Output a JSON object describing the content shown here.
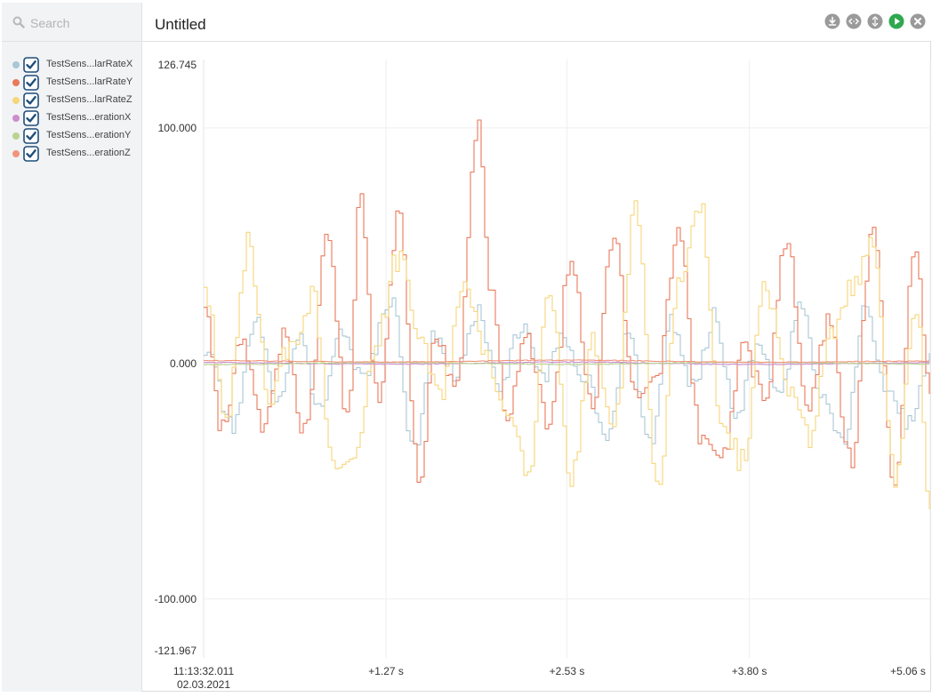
{
  "sidebar": {
    "search_placeholder": "Search",
    "items": [
      {
        "label": "TestSens...larRateX",
        "color": "#a9c7d6",
        "checked": true
      },
      {
        "label": "TestSens...larRateY",
        "color": "#e9795a",
        "checked": true
      },
      {
        "label": "TestSens...larRateZ",
        "color": "#f5d67a",
        "checked": true
      },
      {
        "label": "TestSens...erationX",
        "color": "#cc8dcc",
        "checked": true
      },
      {
        "label": "TestSens...erationY",
        "color": "#b9d393",
        "checked": true
      },
      {
        "label": "TestSens...erationZ",
        "color": "#f0957a",
        "checked": true
      }
    ]
  },
  "header": {
    "title": "Untitled",
    "toolbar": [
      {
        "name": "download-icon",
        "color": "#9a9a9a"
      },
      {
        "name": "expand-horizontal-icon",
        "color": "#9a9a9a"
      },
      {
        "name": "expand-vertical-icon",
        "color": "#9a9a9a"
      },
      {
        "name": "play-icon",
        "color": "#2fa84f"
      },
      {
        "name": "close-icon",
        "color": "#9a9a9a"
      }
    ]
  },
  "chart_data": {
    "type": "line",
    "title": "",
    "xlabel": "",
    "ylabel": "",
    "ylim": [
      -121.967,
      126.745
    ],
    "xlim": [
      0,
      5.06
    ],
    "y_ticks": [
      126.745,
      100.0,
      0.0,
      -100.0,
      -121.967
    ],
    "y_tick_labels": [
      "126.745",
      "100.000",
      "0.000",
      "-100.000",
      "-121.967"
    ],
    "x_ticks": [
      0,
      1.27,
      2.53,
      3.8,
      5.06
    ],
    "x_tick_labels": [
      "11:13:32.011",
      "+1.27 s",
      "+2.53 s",
      "+3.80 s",
      "+5.06 s"
    ],
    "x_start_date": "02.03.2021",
    "grid": true,
    "series": [
      {
        "name": "TestSens...larRateX",
        "color": "#a9c7d6",
        "x": [
          0,
          0.2,
          0.35,
          0.5,
          0.65,
          0.8,
          0.95,
          1.1,
          1.3,
          1.45,
          1.6,
          1.75,
          1.9,
          2.05,
          2.2,
          2.35,
          2.5,
          2.65,
          2.8,
          2.95,
          3.1,
          3.25,
          3.4,
          3.55,
          3.7,
          3.85,
          4.0,
          4.15,
          4.3,
          4.45,
          4.6,
          4.75,
          4.9,
          5.06
        ],
        "y": [
          6,
          -28,
          18,
          -15,
          12,
          -20,
          14,
          -8,
          28,
          -38,
          12,
          -6,
          22,
          -12,
          16,
          -6,
          10,
          -5,
          -30,
          12,
          -35,
          18,
          -10,
          20,
          -22,
          8,
          -15,
          26,
          -15,
          -32,
          24,
          -12,
          -25,
          2
        ]
      },
      {
        "name": "TestSens...larRateY",
        "color": "#e9795a",
        "x": [
          0,
          0.12,
          0.25,
          0.4,
          0.55,
          0.7,
          0.85,
          1.0,
          1.08,
          1.2,
          1.35,
          1.5,
          1.6,
          1.75,
          1.9,
          2.0,
          2.1,
          2.25,
          2.4,
          2.55,
          2.7,
          2.85,
          3.0,
          3.15,
          3.3,
          3.45,
          3.6,
          3.75,
          3.9,
          4.05,
          4.2,
          4.35,
          4.5,
          4.65,
          4.8,
          4.95,
          5.06
        ],
        "y": [
          25,
          -28,
          8,
          -25,
          12,
          -30,
          52,
          -24,
          71,
          -15,
          62,
          -55,
          10,
          -8,
          100,
          28,
          -20,
          10,
          -25,
          45,
          -18,
          58,
          -15,
          -5,
          57,
          -30,
          -40,
          8,
          -15,
          52,
          -20,
          18,
          -42,
          58,
          -50,
          48,
          -18
        ]
      },
      {
        "name": "TestSens...larRateZ",
        "color": "#f5d67a",
        "x": [
          0,
          0.15,
          0.3,
          0.45,
          0.6,
          0.75,
          0.9,
          1.05,
          1.2,
          1.35,
          1.5,
          1.65,
          1.8,
          1.95,
          2.1,
          2.25,
          2.4,
          2.55,
          2.7,
          2.85,
          3.0,
          3.15,
          3.3,
          3.45,
          3.6,
          3.75,
          3.9,
          4.05,
          4.2,
          4.35,
          4.5,
          4.65,
          4.8,
          4.95,
          5.06
        ],
        "y": [
          30,
          -22,
          50,
          -15,
          8,
          28,
          -45,
          -40,
          12,
          45,
          8,
          -12,
          32,
          8,
          -25,
          -45,
          32,
          -50,
          10,
          -28,
          65,
          -55,
          32,
          68,
          -25,
          -42,
          35,
          -8,
          -32,
          10,
          30,
          52,
          -48,
          25,
          -65
        ]
      },
      {
        "name": "TestSens...erationX",
        "color": "#cc8dcc",
        "x": [
          0,
          1.27,
          2.53,
          3.8,
          5.06
        ],
        "y": [
          0.4,
          -0.3,
          0.6,
          -0.4,
          0.3
        ]
      },
      {
        "name": "TestSens...erationY",
        "color": "#b9d393",
        "x": [
          0,
          1.27,
          2.53,
          3.8,
          5.06
        ],
        "y": [
          -0.5,
          0.4,
          -0.4,
          0.5,
          -0.3
        ]
      },
      {
        "name": "TestSens...erationZ",
        "color": "#f0957a",
        "x": [
          0,
          1.27,
          2.53,
          3.8,
          5.06
        ],
        "y": [
          1.2,
          0.6,
          1.4,
          0.5,
          1.0
        ]
      }
    ]
  }
}
